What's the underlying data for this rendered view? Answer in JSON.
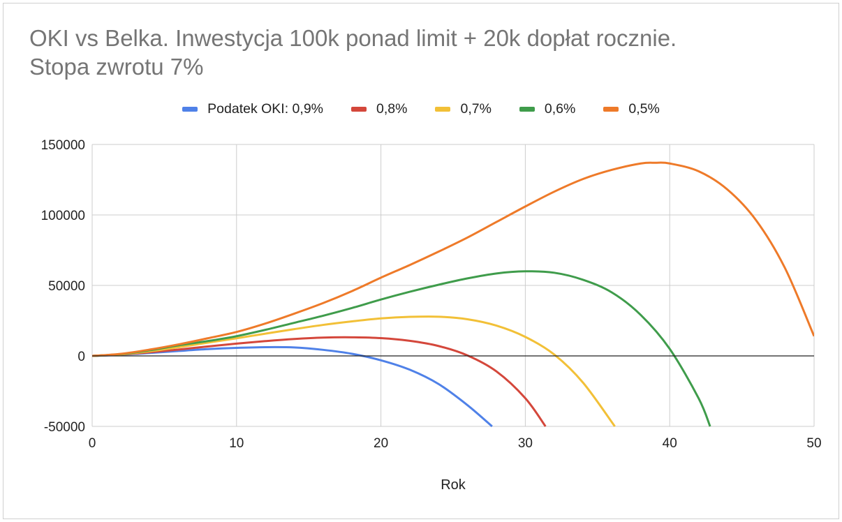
{
  "chart_data": {
    "type": "line",
    "title_lines": [
      "OKI vs Belka. Inwestycja 100k ponad limit + 20k dopłat rocznie.",
      "Stopa zwrotu 7%"
    ],
    "xlabel": "Rok",
    "ylabel": "",
    "xlim": [
      0,
      50
    ],
    "ylim": [
      -50000,
      150000
    ],
    "x_ticks": [
      "0",
      "10",
      "20",
      "30",
      "40",
      "50"
    ],
    "y_ticks": [
      "150000",
      "100000",
      "50000",
      "0",
      "-50000"
    ],
    "x_tick_values": [
      0,
      10,
      20,
      30,
      40,
      50
    ],
    "y_tick_values": [
      150000,
      100000,
      50000,
      0,
      -50000
    ],
    "grid": true,
    "legend_position": "top-center",
    "series": [
      {
        "name": "Podatek OKI: 0,9%",
        "color": "#4f81e8",
        "x": [
          0,
          2,
          4,
          6,
          8,
          10,
          12,
          14,
          16,
          18,
          20,
          22,
          24,
          26,
          27.7
        ],
        "values": [
          0,
          800,
          2100,
          3500,
          4800,
          5700,
          6200,
          6000,
          4300,
          1500,
          -3100,
          -9800,
          -20000,
          -35000,
          -50000
        ]
      },
      {
        "name": "0,8%",
        "color": "#d4473b",
        "x": [
          0,
          2,
          4,
          6,
          8,
          10,
          12,
          14,
          16,
          18,
          20,
          22,
          24,
          26,
          28,
          30,
          31.4
        ],
        "values": [
          0,
          1000,
          2600,
          4500,
          6700,
          8700,
          10500,
          12000,
          13000,
          13200,
          12600,
          10700,
          7000,
          300,
          -11000,
          -30000,
          -50000
        ]
      },
      {
        "name": "0,7%",
        "color": "#f2c037",
        "x": [
          0,
          2,
          4,
          6,
          8,
          10,
          12,
          14,
          16,
          18,
          20,
          22,
          24,
          26,
          28,
          30,
          32,
          34,
          36.2
        ],
        "values": [
          0,
          1100,
          3300,
          6200,
          9400,
          12500,
          15800,
          19000,
          22000,
          24500,
          26600,
          27700,
          27800,
          26000,
          21500,
          13500,
          1000,
          -19000,
          -50000
        ]
      },
      {
        "name": "0,6%",
        "color": "#3f9c4b",
        "x": [
          0,
          2,
          4,
          6,
          8,
          10,
          12,
          14,
          16,
          18,
          20,
          22,
          24,
          26,
          28,
          30,
          32,
          34,
          36,
          38,
          40,
          42,
          42.8
        ],
        "values": [
          0,
          1300,
          4000,
          7500,
          10500,
          14000,
          18500,
          23500,
          28500,
          34000,
          40000,
          45500,
          50500,
          55000,
          58500,
          60000,
          59000,
          54000,
          45000,
          29000,
          5000,
          -30000,
          -50000
        ]
      },
      {
        "name": "0,5%",
        "color": "#ee7a29",
        "x": [
          0,
          2,
          4,
          6,
          8,
          10,
          12,
          14,
          16,
          18,
          20,
          22,
          24,
          26,
          28,
          30,
          32,
          34,
          36,
          38,
          39,
          40,
          42,
          44,
          46,
          48,
          50
        ],
        "values": [
          0,
          1500,
          4500,
          8200,
          12500,
          17000,
          23000,
          30000,
          37500,
          46000,
          55500,
          64500,
          74000,
          84000,
          95000,
          106000,
          116500,
          125500,
          132000,
          136500,
          137000,
          136500,
          131000,
          118000,
          96000,
          62000,
          14000
        ]
      }
    ]
  }
}
